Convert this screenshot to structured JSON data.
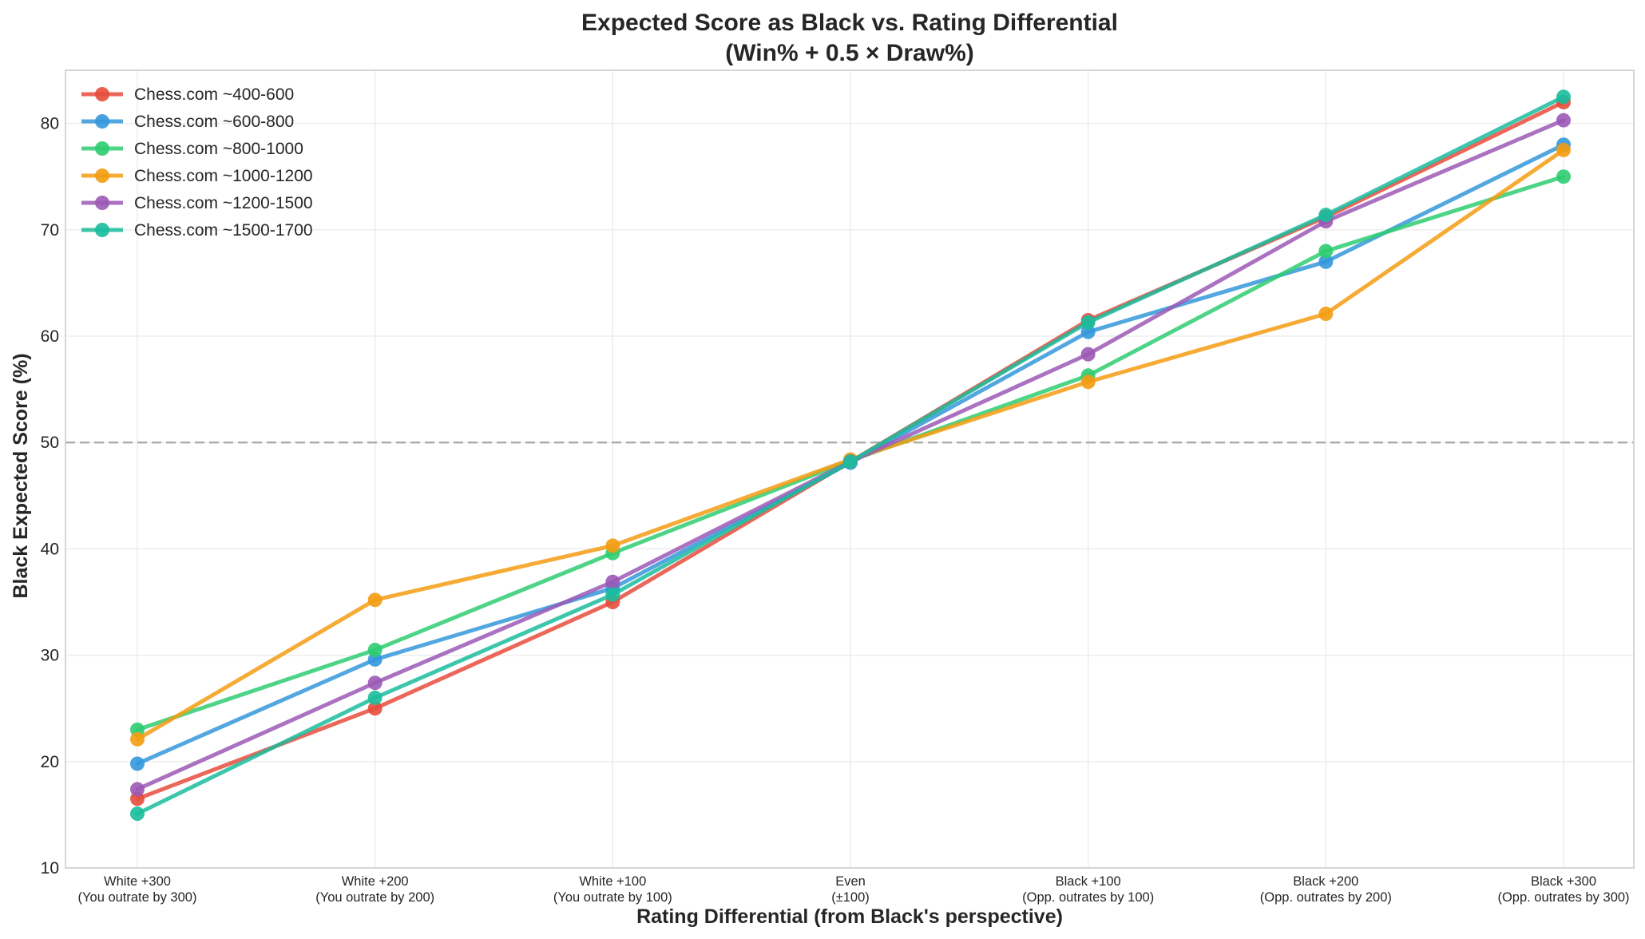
{
  "chart_data": {
    "type": "line",
    "title": "Expected Score as Black vs. Rating Differential",
    "subtitle": "(Win% + 0.5 × Draw%)",
    "xlabel": "Rating Differential (from Black's perspective)",
    "ylabel": "Black Expected Score (%)",
    "categories": [
      [
        "White +300",
        "(You outrate by 300)"
      ],
      [
        "White +200",
        "(You outrate by 200)"
      ],
      [
        "White +100",
        "(You outrate by 100)"
      ],
      [
        "Even",
        "(±100)"
      ],
      [
        "Black +100",
        "(Opp. outrates by 100)"
      ],
      [
        "Black +200",
        "(Opp. outrates by 200)"
      ],
      [
        "Black +300",
        "(Opp. outrates by 300)"
      ]
    ],
    "ylim": [
      10,
      85
    ],
    "yticks": [
      10,
      20,
      30,
      40,
      50,
      60,
      70,
      80
    ],
    "grid": true,
    "legend_position": "top-left",
    "reference_line": {
      "y": 50,
      "style": "dashed",
      "color": "#aaaaaa"
    },
    "series": [
      {
        "name": "Chess.com ~400-600",
        "color": "#e74c3c",
        "values": [
          16.5,
          25.0,
          35.0,
          48.2,
          61.5,
          71.2,
          82.0
        ]
      },
      {
        "name": "Chess.com ~600-800",
        "color": "#3498db",
        "values": [
          19.8,
          29.6,
          36.3,
          48.1,
          60.4,
          67.0,
          78.0
        ]
      },
      {
        "name": "Chess.com ~800-1000",
        "color": "#2ecc71",
        "values": [
          23.0,
          30.5,
          39.6,
          48.3,
          56.3,
          68.0,
          75.0
        ]
      },
      {
        "name": "Chess.com ~1000-1200",
        "color": "#f39c12",
        "values": [
          22.1,
          35.2,
          40.3,
          48.4,
          55.7,
          62.1,
          77.5
        ]
      },
      {
        "name": "Chess.com ~1200-1500",
        "color": "#9b59b6",
        "values": [
          17.4,
          27.4,
          36.9,
          48.2,
          58.3,
          70.8,
          80.3
        ]
      },
      {
        "name": "Chess.com ~1500-1700",
        "color": "#1abc9c",
        "values": [
          15.1,
          26.0,
          35.7,
          48.2,
          61.3,
          71.4,
          82.5
        ]
      }
    ]
  }
}
